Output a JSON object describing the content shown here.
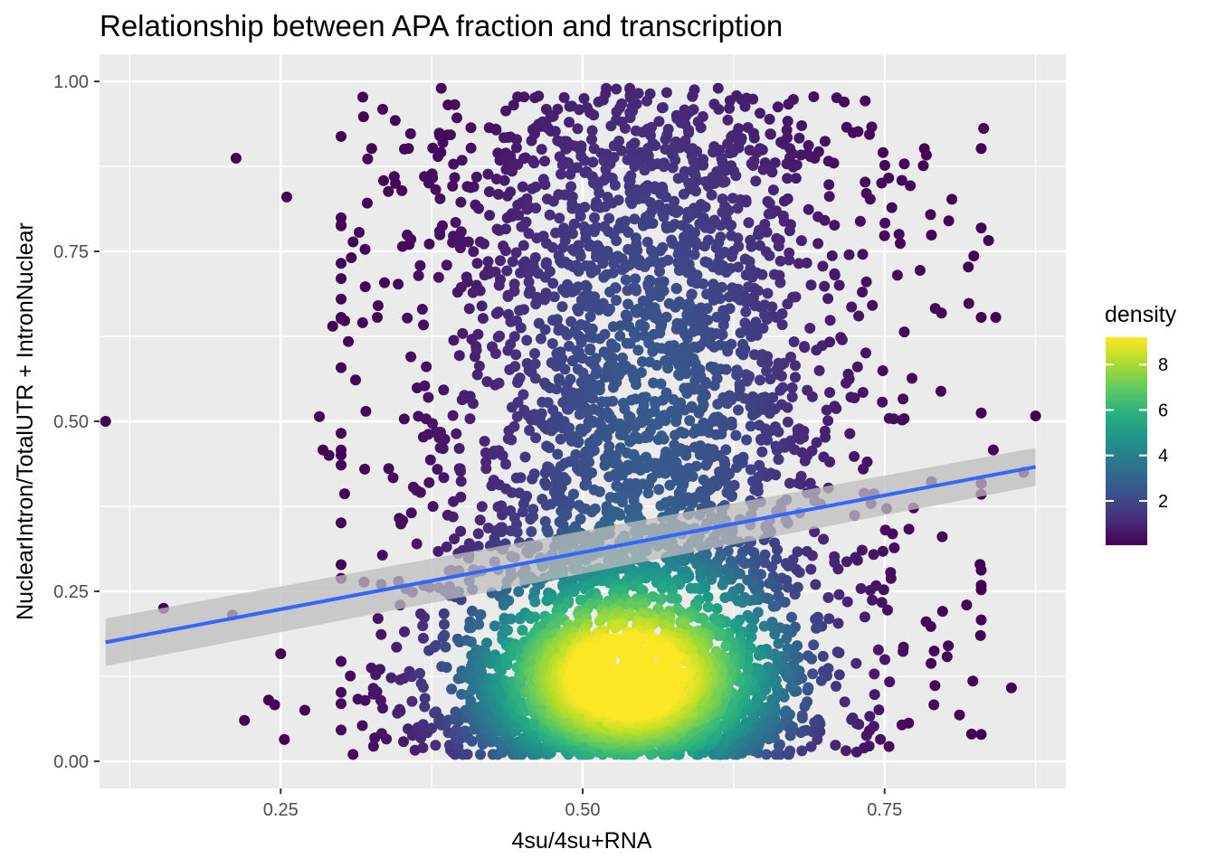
{
  "chart_data": {
    "type": "scatter",
    "title": "Relationship between APA fraction and transcription",
    "xlabel": "4su/4su+RNA",
    "ylabel": "NuclearIntron/TotalUTR + IntronNuclear",
    "xlim": [
      0.1,
      0.9
    ],
    "ylim": [
      -0.04,
      1.04
    ],
    "xticks": [
      0.25,
      0.5,
      0.75
    ],
    "xtick_labels": [
      "0.25",
      "0.50",
      "0.75"
    ],
    "yticks": [
      0.0,
      0.25,
      0.5,
      0.75,
      1.0
    ],
    "ytick_labels": [
      "0.00",
      "0.25",
      "0.50",
      "0.75",
      "1.00"
    ],
    "grid": true,
    "background": "#ebebeb",
    "colormap": "viridis",
    "legend": {
      "title": "density",
      "position": "right",
      "range": [
        0.05,
        9.2
      ],
      "ticks": [
        2,
        4,
        6,
        8
      ],
      "tick_labels": [
        "2",
        "4",
        "6",
        "8"
      ]
    },
    "series": [
      {
        "kind": "points",
        "color_by": "density",
        "point_color_low": "#440154",
        "count_estimate": 5000,
        "density_peak": {
          "x": 0.535,
          "y": 0.12
        },
        "outliers": [
          {
            "x": 0.105,
            "y": 0.5
          },
          {
            "x": 0.153,
            "y": 0.225
          },
          {
            "x": 0.21,
            "y": 0.215
          },
          {
            "x": 0.213,
            "y": 0.887
          },
          {
            "x": 0.22,
            "y": 0.06
          },
          {
            "x": 0.24,
            "y": 0.09
          },
          {
            "x": 0.245,
            "y": 0.083
          },
          {
            "x": 0.25,
            "y": 0.158
          },
          {
            "x": 0.253,
            "y": 0.032
          },
          {
            "x": 0.255,
            "y": 0.83
          },
          {
            "x": 0.27,
            "y": 0.075
          },
          {
            "x": 0.282,
            "y": 0.507
          },
          {
            "x": 0.285,
            "y": 0.458
          },
          {
            "x": 0.29,
            "y": 0.45
          },
          {
            "x": 0.293,
            "y": 0.64
          },
          {
            "x": 0.3,
            "y": 0.71
          },
          {
            "x": 0.303,
            "y": 0.648
          },
          {
            "x": 0.31,
            "y": 0.764
          },
          {
            "x": 0.315,
            "y": 0.778
          },
          {
            "x": 0.318,
            "y": 0.977
          },
          {
            "x": 0.32,
            "y": 0.698
          },
          {
            "x": 0.322,
            "y": 0.886
          },
          {
            "x": 0.345,
            "y": 0.85
          },
          {
            "x": 0.33,
            "y": 0.653
          },
          {
            "x": 0.855,
            "y": 0.108
          },
          {
            "x": 0.865,
            "y": 0.425
          },
          {
            "x": 0.875,
            "y": 0.508
          },
          {
            "x": 0.832,
            "y": 0.931
          },
          {
            "x": 0.842,
            "y": 0.653
          },
          {
            "x": 0.836,
            "y": 0.766
          },
          {
            "x": 0.782,
            "y": 0.876
          },
          {
            "x": 0.788,
            "y": 0.804
          },
          {
            "x": 0.84,
            "y": 0.458
          },
          {
            "x": 0.822,
            "y": 0.04
          },
          {
            "x": 0.812,
            "y": 0.068
          }
        ]
      },
      {
        "kind": "fit",
        "name": "",
        "method": "linear",
        "color": "#3366ff",
        "x": [
          0.105,
          0.875
        ],
        "y": [
          0.175,
          0.433
        ],
        "ci_lower": [
          0.14,
          0.405
        ],
        "ci_upper": [
          0.21,
          0.461
        ],
        "ci_color": "#bdbdbd"
      }
    ]
  }
}
